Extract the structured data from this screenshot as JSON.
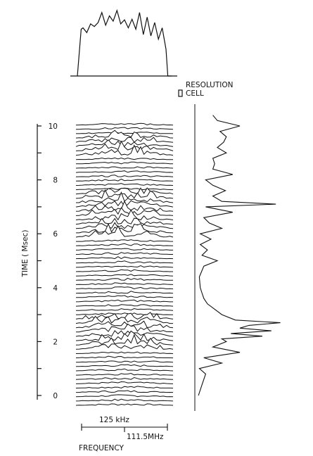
{
  "chart_data": {
    "type": "line",
    "title": "",
    "time_axis": {
      "label": "TIME  ( Msec)",
      "range": [
        0,
        10
      ],
      "tick_labels": [
        "0",
        "2",
        "4",
        "6",
        "8",
        "10"
      ],
      "minor_ticks": [
        "1",
        "3",
        "5",
        "7",
        "9"
      ]
    },
    "frequency_axis": {
      "label": "FREQUENCY",
      "scale_bar_label": "125  kHz",
      "center_label": "111.5MHz"
    },
    "resolution_cell": {
      "label_line1": "RESOLUTION",
      "label_line2": "CELL"
    },
    "waterfall": {
      "trace_count": 66,
      "time_start": 0,
      "time_end": 10.4,
      "high_activity_intervals": [
        [
          2.0,
          3.3
        ],
        [
          6.1,
          7.9
        ],
        [
          9.2,
          10.0
        ]
      ]
    },
    "top_spectrum": {
      "x": [
        0.0,
        0.04,
        0.06,
        0.1,
        0.14,
        0.18,
        0.22,
        0.26,
        0.3,
        0.34,
        0.38,
        0.42,
        0.46,
        0.5,
        0.54,
        0.58,
        0.62,
        0.66,
        0.7,
        0.74,
        0.78,
        0.82,
        0.86,
        0.9,
        0.94,
        0.96,
        1.0
      ],
      "y": [
        0.0,
        0.7,
        0.72,
        0.65,
        0.78,
        0.74,
        0.8,
        0.95,
        0.76,
        0.9,
        0.82,
        0.98,
        0.78,
        0.84,
        0.72,
        0.85,
        0.7,
        0.95,
        0.62,
        0.88,
        0.6,
        0.8,
        0.55,
        0.72,
        0.4,
        0.0,
        0.0
      ]
    },
    "time_profile": {
      "time": [
        0.0,
        0.4,
        0.8,
        1.0,
        1.2,
        1.4,
        1.6,
        1.8,
        2.0,
        2.1,
        2.2,
        2.3,
        2.4,
        2.5,
        2.6,
        2.7,
        2.8,
        3.0,
        3.2,
        3.4,
        3.6,
        3.8,
        4.0,
        4.4,
        4.8,
        5.0,
        5.2,
        5.4,
        5.6,
        5.8,
        6.0,
        6.2,
        6.4,
        6.6,
        6.8,
        7.0,
        7.1,
        7.2,
        7.4,
        7.6,
        7.8,
        8.0,
        8.2,
        8.4,
        8.6,
        8.8,
        9.0,
        9.2,
        9.4,
        9.6,
        9.8,
        10.0,
        10.2,
        10.4
      ],
      "value": [
        0.04,
        0.08,
        0.12,
        0.05,
        0.3,
        0.1,
        0.5,
        0.2,
        0.35,
        0.3,
        0.75,
        0.4,
        0.85,
        0.5,
        0.6,
        0.95,
        0.45,
        0.3,
        0.22,
        0.14,
        0.1,
        0.08,
        0.06,
        0.05,
        0.1,
        0.25,
        0.08,
        0.14,
        0.06,
        0.18,
        0.06,
        0.3,
        0.16,
        0.1,
        0.42,
        0.12,
        0.9,
        0.3,
        0.2,
        0.34,
        0.2,
        0.12,
        0.42,
        0.2,
        0.22,
        0.2,
        0.35,
        0.25,
        0.32,
        0.35,
        0.28,
        0.5,
        0.25,
        0.2
      ]
    }
  }
}
